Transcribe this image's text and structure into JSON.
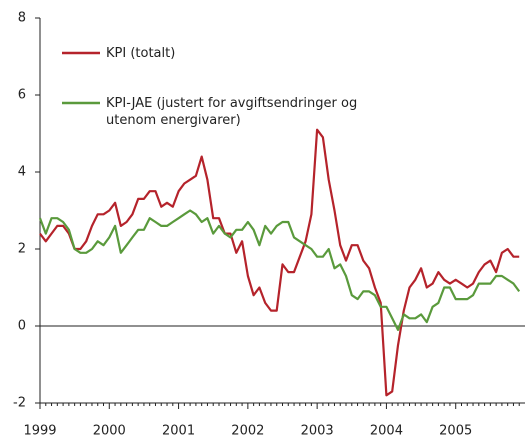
{
  "chart_data": {
    "type": "line",
    "categories": [
      "1999",
      null,
      null,
      null,
      null,
      null,
      null,
      null,
      null,
      null,
      null,
      null,
      "2000",
      null,
      null,
      null,
      null,
      null,
      null,
      null,
      null,
      null,
      null,
      null,
      "2001",
      null,
      null,
      null,
      null,
      null,
      null,
      null,
      null,
      null,
      null,
      null,
      "2002",
      null,
      null,
      null,
      null,
      null,
      null,
      null,
      null,
      null,
      null,
      null,
      "2003",
      null,
      null,
      null,
      null,
      null,
      null,
      null,
      null,
      null,
      null,
      null,
      "2004",
      null,
      null,
      null,
      null,
      null,
      null,
      null,
      null,
      null,
      null,
      null,
      "2005",
      null,
      null,
      null,
      null,
      null,
      null,
      null,
      null,
      null,
      null,
      null
    ],
    "series": [
      {
        "name": "KPI (totalt)",
        "color": "#b5232b",
        "values": [
          2.4,
          2.2,
          2.4,
          2.6,
          2.6,
          2.4,
          2.0,
          2.0,
          2.2,
          2.6,
          2.9,
          2.9,
          3.0,
          3.2,
          2.6,
          2.7,
          2.9,
          3.3,
          3.3,
          3.5,
          3.5,
          3.1,
          3.2,
          3.1,
          3.5,
          3.7,
          3.8,
          3.9,
          4.4,
          3.8,
          2.8,
          2.8,
          2.4,
          2.4,
          1.9,
          2.2,
          1.3,
          0.8,
          1.0,
          0.6,
          0.4,
          0.4,
          1.6,
          1.4,
          1.4,
          1.8,
          2.2,
          2.9,
          5.1,
          4.9,
          3.8,
          3.0,
          2.1,
          1.7,
          2.1,
          2.1,
          1.7,
          1.5,
          1.0,
          0.6,
          -1.8,
          -1.7,
          -0.5,
          0.4,
          1.0,
          1.2,
          1.5,
          1.0,
          1.1,
          1.4,
          1.2,
          1.1,
          1.2,
          1.1,
          1.0,
          1.1,
          1.4,
          1.6,
          1.7,
          1.4,
          1.9,
          2.0,
          1.8,
          1.8
        ]
      },
      {
        "name": "KPI-JAE (justert for avgiftsendringer og utenom energivarer)",
        "color": "#5a9a3c",
        "values": [
          2.8,
          2.4,
          2.8,
          2.8,
          2.7,
          2.5,
          2.0,
          1.9,
          1.9,
          2.0,
          2.2,
          2.1,
          2.3,
          2.6,
          1.9,
          2.1,
          2.3,
          2.5,
          2.5,
          2.8,
          2.7,
          2.6,
          2.6,
          2.7,
          2.8,
          2.9,
          3.0,
          2.9,
          2.7,
          2.8,
          2.4,
          2.6,
          2.4,
          2.3,
          2.5,
          2.5,
          2.7,
          2.5,
          2.1,
          2.6,
          2.4,
          2.6,
          2.7,
          2.7,
          2.3,
          2.2,
          2.1,
          2.0,
          1.8,
          1.8,
          2.0,
          1.5,
          1.6,
          1.3,
          0.8,
          0.7,
          0.9,
          0.9,
          0.8,
          0.5,
          0.5,
          0.2,
          -0.1,
          0.3,
          0.2,
          0.2,
          0.3,
          0.1,
          0.5,
          0.6,
          1.0,
          1.0,
          0.7,
          0.7,
          0.7,
          0.8,
          1.1,
          1.1,
          1.1,
          1.3,
          1.3,
          1.2,
          1.1,
          0.9
        ]
      }
    ],
    "ylim": [
      -2,
      8
    ],
    "yticks": [
      -2,
      0,
      2,
      4,
      6,
      8
    ],
    "grid": false,
    "legend": "upper left"
  }
}
